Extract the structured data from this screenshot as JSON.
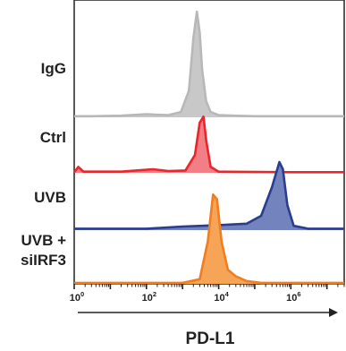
{
  "chart_data": {
    "type": "area",
    "xlabel": "PD-L1",
    "x_scale": "log10",
    "xlim": [
      1,
      30000000
    ],
    "x_ticks": [
      {
        "value": 1,
        "label": "10",
        "exp": "0"
      },
      {
        "value": 100,
        "label": "10",
        "exp": "2"
      },
      {
        "value": 10000,
        "label": "10",
        "exp": "4"
      },
      {
        "value": 1000000,
        "label": "10",
        "exp": "6"
      }
    ],
    "series": [
      {
        "name": "IgG",
        "color": "#b8b8b8",
        "fill": "#c8c8c8",
        "points": [
          [
            1,
            0.01
          ],
          [
            3,
            0.01
          ],
          [
            20,
            0.015
          ],
          [
            100,
            0.03
          ],
          [
            180,
            0.025
          ],
          [
            400,
            0.02
          ],
          [
            900,
            0.05
          ],
          [
            1500,
            0.25
          ],
          [
            2000,
            0.75
          ],
          [
            2500,
            1.0
          ],
          [
            3000,
            0.8
          ],
          [
            3500,
            0.45
          ],
          [
            4500,
            0.15
          ],
          [
            6000,
            0.05
          ],
          [
            10000,
            0.02
          ],
          [
            100000,
            0.01
          ],
          [
            1000000,
            0.01
          ],
          [
            30000000,
            0.01
          ]
        ]
      },
      {
        "name": "Ctrl",
        "color": "#e8262b",
        "fill": "#f27f86",
        "points": [
          [
            1,
            0.01
          ],
          [
            1.3,
            0.1
          ],
          [
            1.8,
            0.02
          ],
          [
            20,
            0.02
          ],
          [
            150,
            0.06
          ],
          [
            400,
            0.03
          ],
          [
            1200,
            0.04
          ],
          [
            2200,
            0.3
          ],
          [
            3000,
            0.85
          ],
          [
            3800,
            0.95
          ],
          [
            4500,
            0.55
          ],
          [
            6000,
            0.1
          ],
          [
            10000,
            0.02
          ],
          [
            1000000,
            0.01
          ],
          [
            30000000,
            0.01
          ]
        ]
      },
      {
        "name": "UVB",
        "color": "#2b3d8f",
        "fill": "#7283bd",
        "points": [
          [
            1,
            0.02
          ],
          [
            10,
            0.02
          ],
          [
            100,
            0.02
          ],
          [
            1000,
            0.05
          ],
          [
            10000,
            0.07
          ],
          [
            60000,
            0.09
          ],
          [
            150000,
            0.2
          ],
          [
            300000,
            0.6
          ],
          [
            480000,
            0.95
          ],
          [
            600000,
            0.85
          ],
          [
            800000,
            0.35
          ],
          [
            1200000,
            0.06
          ],
          [
            3000000,
            0.02
          ],
          [
            30000000,
            0.02
          ]
        ]
      },
      {
        "name": "UVB +\nsiIRF3",
        "color": "#f07d22",
        "fill": "#f6a556",
        "points": [
          [
            1,
            0.01
          ],
          [
            1000,
            0.01
          ],
          [
            3000,
            0.05
          ],
          [
            5000,
            0.45
          ],
          [
            7000,
            0.95
          ],
          [
            9000,
            0.9
          ],
          [
            12000,
            0.45
          ],
          [
            18000,
            0.15
          ],
          [
            30000,
            0.08
          ],
          [
            60000,
            0.03
          ],
          [
            150000,
            0.01
          ],
          [
            1000000,
            0.01
          ],
          [
            30000000,
            0.01
          ]
        ]
      }
    ],
    "arrow": "right"
  }
}
